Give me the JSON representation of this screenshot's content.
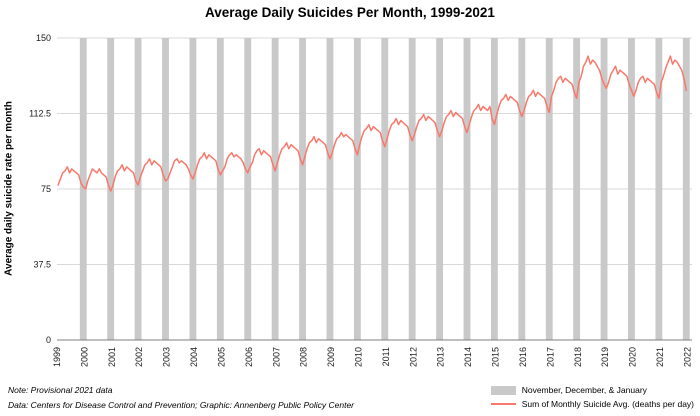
{
  "notes": {
    "line1": "Note: Provisional 2021 data",
    "line2": "Data: Centers for Disease Control and Prevention; Graphic: Annenberg Public Policy Center"
  },
  "legend": {
    "bars_label": "November, December, & January",
    "line_label": "Sum of Monthly Suicide Avg. (deaths per day)"
  },
  "colors": {
    "line": "#f8796b",
    "shading": "#c9c9c9",
    "gridline": "#d9d9d9",
    "axis": "#7f7f7f"
  },
  "chart_data": {
    "type": "line",
    "title": "Average Daily Suicides Per Month, 1999-2021",
    "xlabel": "",
    "ylabel": "Average daily suicide rate per month",
    "ylim": [
      0,
      150
    ],
    "yticks": [
      0,
      37.5,
      75,
      112.5,
      150
    ],
    "grid": "horizontal",
    "legend_position": "bottom-right",
    "x_start_year": 1999,
    "x_tick_years": [
      1999,
      2000,
      2001,
      2002,
      2003,
      2004,
      2005,
      2006,
      2007,
      2008,
      2009,
      2010,
      2011,
      2012,
      2013,
      2014,
      2015,
      2016,
      2017,
      2018,
      2019,
      2020,
      2021,
      2022
    ],
    "months_domain": 278,
    "shading": {
      "label": "November, December, & January",
      "color": "#c9c9c9",
      "months_covered": [
        "Nov",
        "Dec",
        "Jan"
      ],
      "years": [
        1999,
        2000,
        2001,
        2002,
        2003,
        2004,
        2005,
        2006,
        2007,
        2008,
        2009,
        2010,
        2011,
        2012,
        2013,
        2014,
        2015,
        2016,
        2017,
        2018,
        2019,
        2020,
        2021
      ]
    },
    "series": [
      {
        "name": "Sum of Monthly Suicide Avg. (deaths per day)",
        "color": "#f8796b",
        "start_month": "1999-01",
        "frequency": "monthly",
        "values": [
          77,
          80,
          83,
          84,
          86,
          83,
          85,
          84,
          83,
          82,
          78,
          76,
          75,
          79,
          82,
          85,
          84,
          83,
          85,
          83,
          82,
          81,
          77,
          74,
          77,
          81,
          84,
          85,
          87,
          84,
          86,
          85,
          84,
          83,
          79,
          77,
          81,
          84,
          87,
          88,
          90,
          87,
          89,
          88,
          87,
          86,
          82,
          79,
          80,
          83,
          86,
          89,
          90,
          88,
          89,
          88,
          87,
          85,
          82,
          80,
          83,
          87,
          90,
          91,
          93,
          90,
          92,
          91,
          90,
          89,
          85,
          82,
          84,
          86,
          90,
          92,
          93,
          91,
          92,
          91,
          90,
          88,
          85,
          83,
          86,
          88,
          92,
          94,
          95,
          92,
          94,
          93,
          92,
          91,
          87,
          84,
          88,
          92,
          95,
          96,
          98,
          95,
          97,
          96,
          95,
          94,
          90,
          87,
          91,
          95,
          98,
          99,
          101,
          98,
          100,
          99,
          98,
          97,
          93,
          90,
          93,
          97,
          100,
          101,
          103,
          101,
          102,
          101,
          100,
          99,
          95,
          92,
          97,
          101,
          104,
          105,
          107,
          104,
          106,
          105,
          104,
          103,
          99,
          96,
          100,
          104,
          107,
          108,
          110,
          107,
          109,
          108,
          107,
          106,
          102,
          99,
          102,
          106,
          109,
          110,
          112,
          109,
          111,
          110,
          109,
          108,
          104,
          101,
          104,
          108,
          111,
          112,
          114,
          111,
          113,
          112,
          111,
          110,
          106,
          103,
          107,
          111,
          114,
          115,
          117,
          114,
          116,
          115,
          114,
          116,
          110,
          107,
          112,
          116,
          119,
          120,
          122,
          119,
          121,
          120,
          119,
          118,
          114,
          111,
          114,
          118,
          121,
          122,
          124,
          121,
          123,
          122,
          121,
          120,
          116,
          113,
          121,
          124,
          128,
          130,
          131,
          128,
          130,
          129,
          128,
          127,
          123,
          120,
          128,
          131,
          136,
          138,
          141,
          137,
          139,
          138,
          136,
          134,
          130,
          127,
          125,
          128,
          132,
          134,
          136,
          132,
          134,
          133,
          132,
          131,
          127,
          124,
          121,
          124,
          128,
          130,
          131,
          128,
          130,
          129,
          128,
          127,
          123,
          120,
          128,
          131,
          135,
          138,
          141,
          137,
          139,
          138,
          136,
          134,
          130,
          124
        ]
      }
    ]
  }
}
